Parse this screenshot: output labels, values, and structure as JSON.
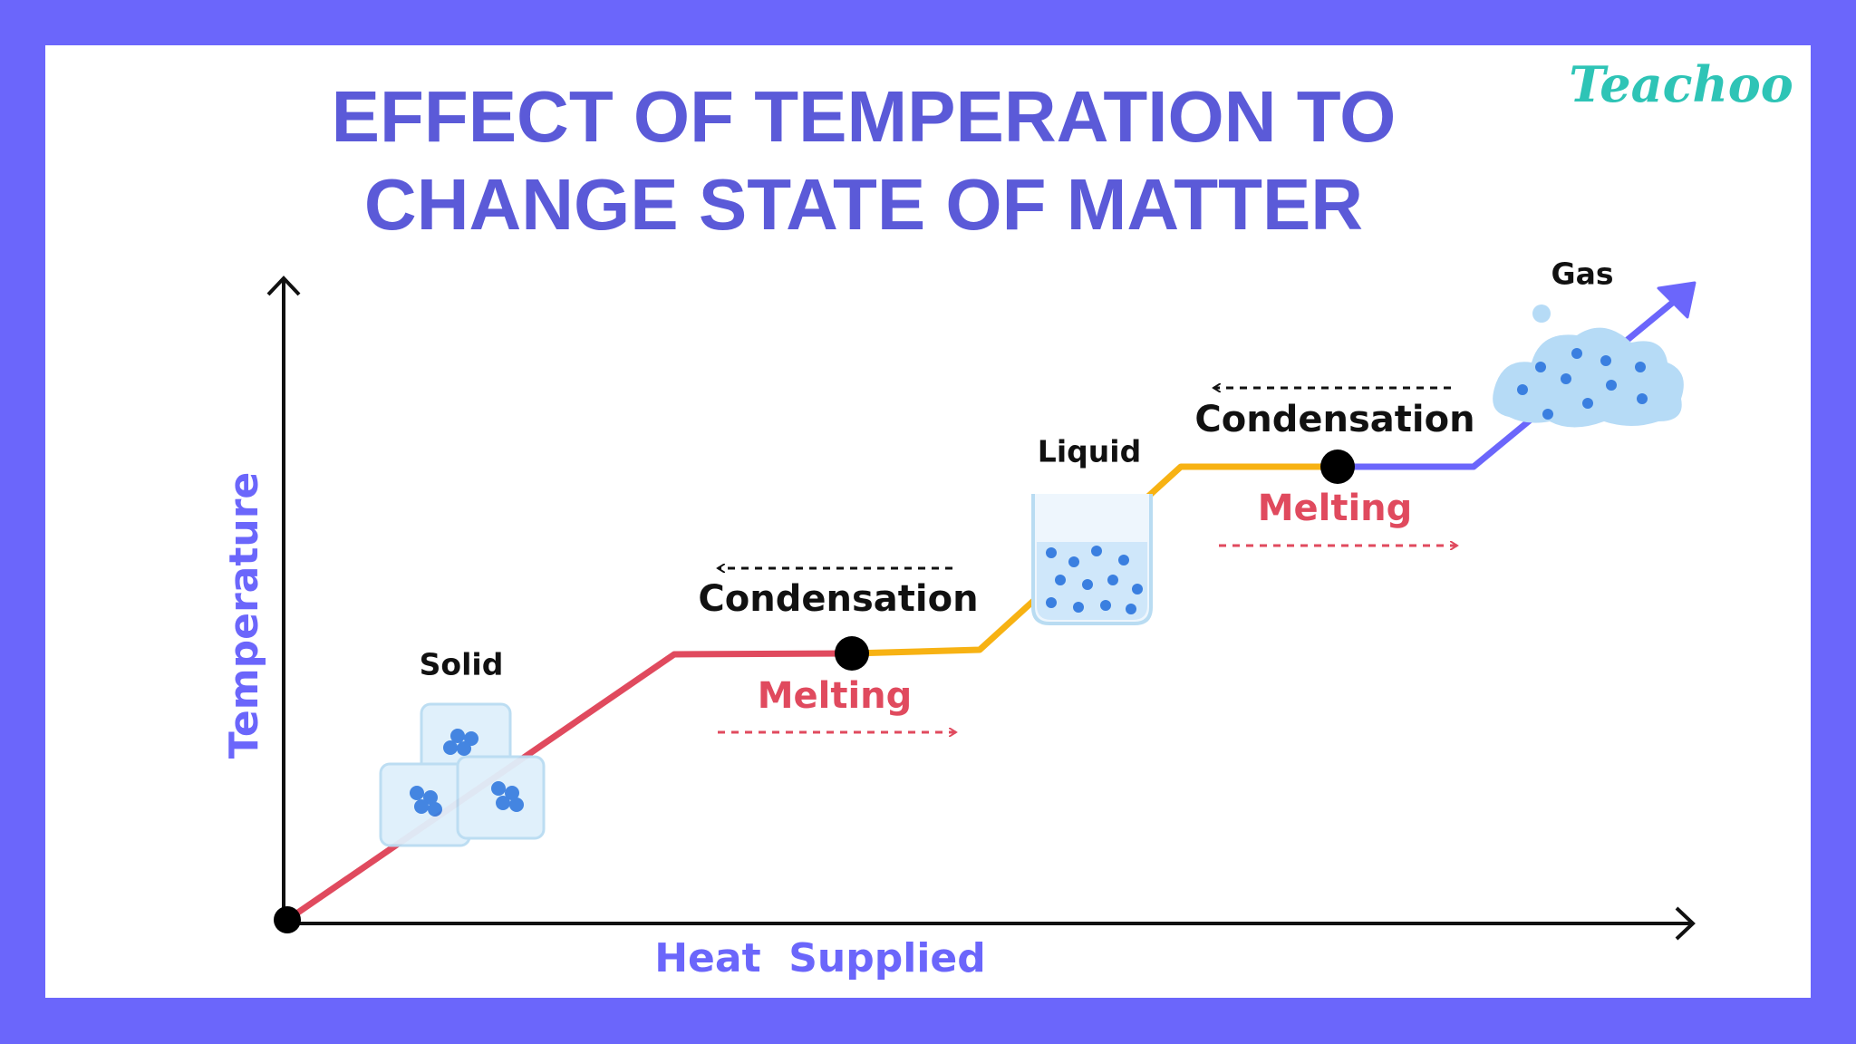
{
  "header": {
    "title": [
      "EFFECT OF TEMPERATION TO",
      "CHANGE STATE OF MATTER"
    ],
    "brand": "Teachoo"
  },
  "axes": {
    "x_label": "Heat  Supplied",
    "y_label": "Temperature"
  },
  "states": [
    {
      "label": "Solid"
    },
    {
      "label": "Liquid"
    },
    {
      "label": "Gas"
    }
  ],
  "transitions": [
    {
      "above": "Condensation",
      "below": "Melting"
    },
    {
      "above": "Condensation",
      "below": "Melting"
    }
  ]
}
